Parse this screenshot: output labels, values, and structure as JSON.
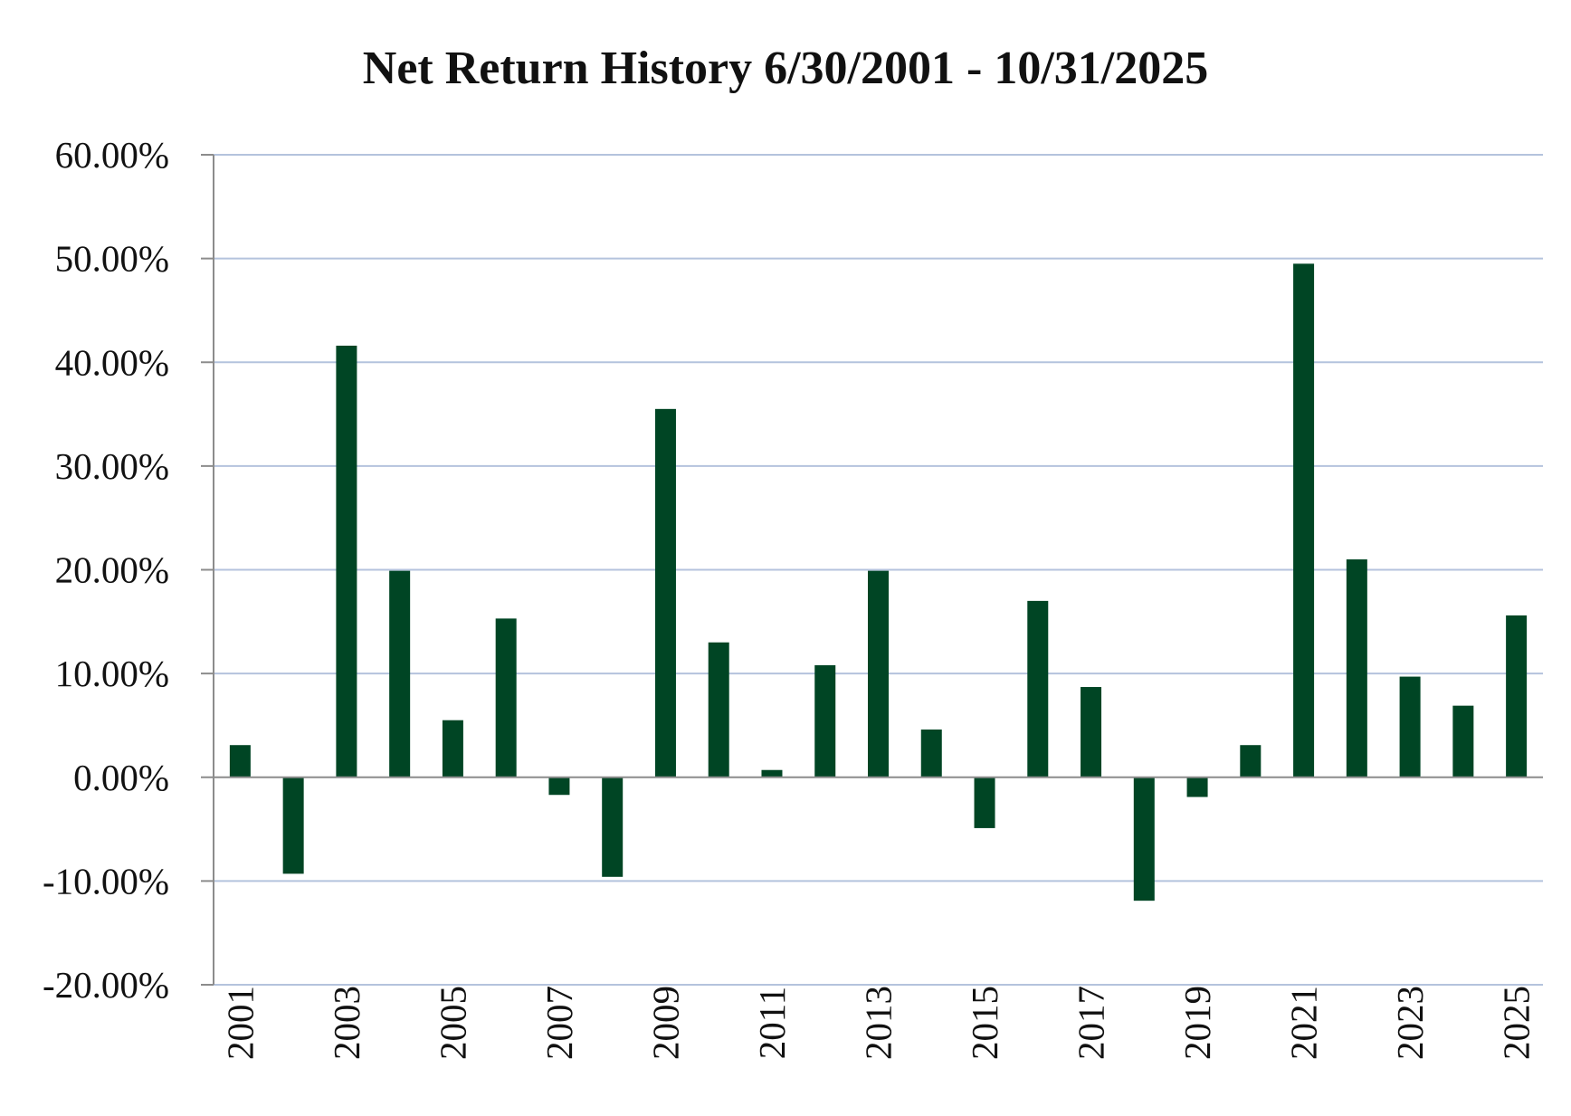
{
  "chart_data": {
    "type": "bar",
    "title": "Net Return History 6/30/2001 - 10/31/2025",
    "xlabel": "",
    "ylabel": "",
    "ylim": [
      -20,
      60
    ],
    "y_ticks": [
      60,
      50,
      40,
      30,
      20,
      10,
      0,
      -10,
      -20
    ],
    "y_tick_labels": [
      "60.00%",
      "50.00%",
      "40.00%",
      "30.00%",
      "20.00%",
      "10.00%",
      "0.00%",
      "-10.00%",
      "-20.00%"
    ],
    "categories": [
      "2001",
      "2002",
      "2003",
      "2004",
      "2005",
      "2006",
      "2007",
      "2008",
      "2009",
      "2010",
      "2011",
      "2012",
      "2013",
      "2014",
      "2015",
      "2016",
      "2017",
      "2018",
      "2019",
      "2020",
      "2021",
      "2022",
      "2023",
      "2024",
      "2025"
    ],
    "x_tick_labels_shown": [
      "2001",
      "2003",
      "2005",
      "2007",
      "2009",
      "2011",
      "2013",
      "2015",
      "2017",
      "2019",
      "2021",
      "2023",
      "2025"
    ],
    "values": [
      3.1,
      -9.3,
      41.6,
      19.9,
      5.5,
      15.3,
      -1.7,
      -9.6,
      35.5,
      13.0,
      0.7,
      10.8,
      19.9,
      4.6,
      -4.9,
      17.0,
      8.7,
      -11.9,
      -1.9,
      3.1,
      49.5,
      21.0,
      9.7,
      6.9,
      15.6
    ],
    "grid": true,
    "legend": "none",
    "colors": {
      "bar": "#004524",
      "gridline": "#b4c3dd",
      "axis": "#8c8c8c",
      "text": "#111111"
    }
  }
}
